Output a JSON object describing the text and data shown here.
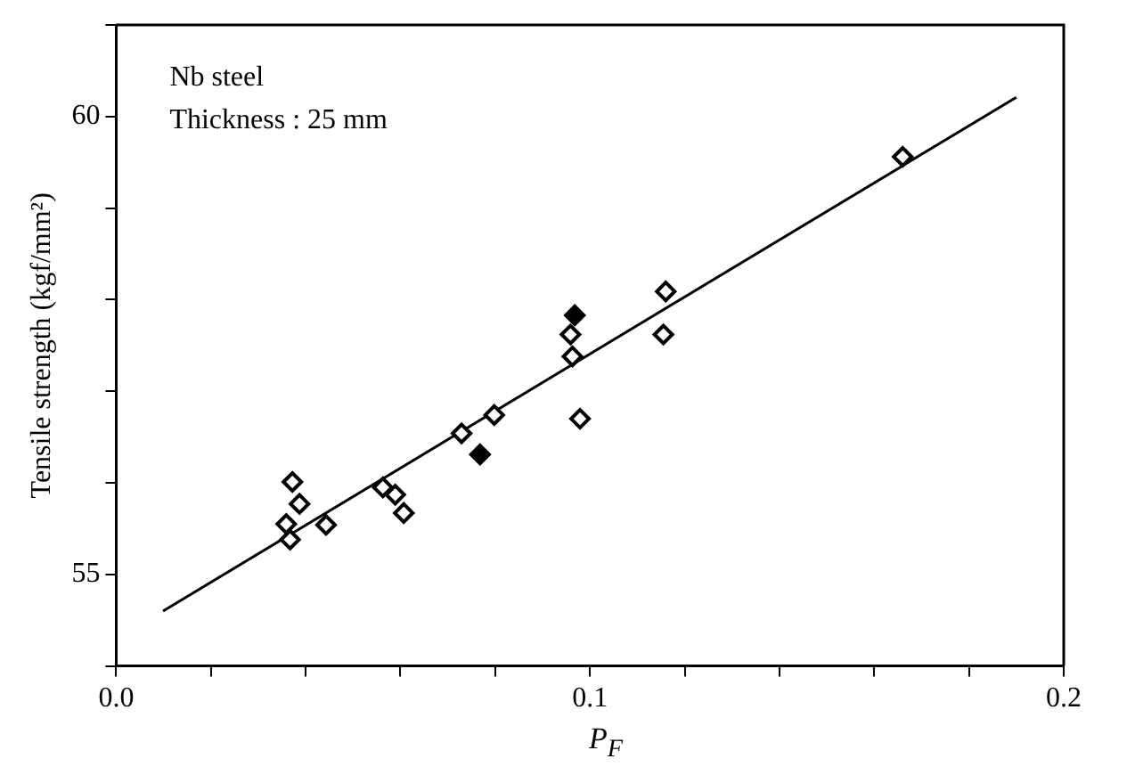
{
  "chart_data": {
    "type": "scatter",
    "xlabel": "P$_{F}$",
    "ylabel": "Tensile strength (kgf/mm²)",
    "annotations": [
      "Nb steel",
      "Thickness : 25 mm"
    ],
    "xlim": [
      0,
      0.2
    ],
    "xticks": [
      {
        "value": 0,
        "label": "0.0"
      },
      {
        "value": 0.02,
        "label": null
      },
      {
        "value": 0.04,
        "label": null
      },
      {
        "value": 0.06,
        "label": null
      },
      {
        "value": 0.08,
        "label": null
      },
      0.1,
      {
        "value": 0.12,
        "label": null
      },
      {
        "value": 0.14,
        "label": null
      },
      {
        "value": 0.16,
        "label": null
      },
      {
        "value": 0.18,
        "label": null
      },
      0.2
    ],
    "ylim": [
      54,
      61
    ],
    "yticks": [
      {
        "value": 54,
        "label": null
      },
      55,
      {
        "value": 56,
        "label": null
      },
      {
        "value": 57,
        "label": null
      },
      {
        "value": 58,
        "label": null
      },
      {
        "value": 59,
        "label": null
      },
      60,
      {
        "value": 61,
        "label": null
      }
    ],
    "grid": false,
    "legend": false,
    "marker": "diamond",
    "series": [
      {
        "type": "scatter",
        "color": "#000000",
        "x": [
          0.166,
          0.116,
          0.1155,
          0.0959,
          0.0963,
          0.0979,
          0.0798,
          0.0729,
          0.0563,
          0.0589,
          0.0607,
          0.0443,
          0.0372,
          0.0387,
          0.0359,
          0.0367
        ],
        "values": [
          59.56,
          58.09,
          57.62,
          57.62,
          57.38,
          56.7,
          56.74,
          56.54,
          55.95,
          55.87,
          55.67,
          55.54,
          56.01,
          55.77,
          55.55,
          55.38
        ]
      },
      {
        "type": "scatter",
        "color": "#000000",
        "x": [
          0.0968,
          0.0768
        ],
        "values": [
          57.83,
          56.31
        ]
      },
      {
        "type": "line",
        "color": "#000000",
        "marker": "none",
        "x": [
          0.0099,
          0.19
        ],
        "values": [
          54.6,
          60.21
        ]
      }
    ]
  }
}
